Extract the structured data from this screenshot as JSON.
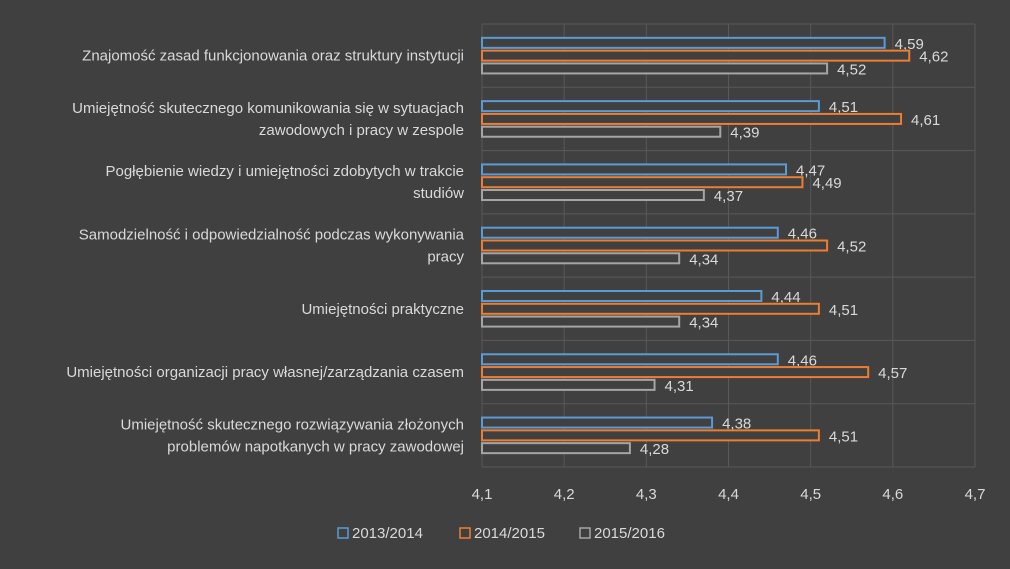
{
  "chart_data": {
    "type": "bar",
    "orientation": "horizontal",
    "categories": [
      [
        "Znajomość zasad funkcjonowania oraz struktury instytucji"
      ],
      [
        "Umiejętność skutecznego komunikowania się w sytuacjach",
        "zawodowych i pracy w zespole"
      ],
      [
        "Pogłębienie wiedzy i umiejętności zdobytych w trakcie",
        "studiów"
      ],
      [
        "Samodzielność i odpowiedzialność podczas wykonywania",
        "pracy"
      ],
      [
        "Umiejętności praktyczne"
      ],
      [
        "Umiejętności organizacji pracy własnej/zarządzania czasem"
      ],
      [
        "Umiejętność skutecznego rozwiązywania złożonych",
        "problemów napotkanych w pracy zawodowej"
      ]
    ],
    "series": [
      {
        "name": "2013/2014",
        "color": "#5b9bd5",
        "values": [
          4.59,
          4.51,
          4.47,
          4.46,
          4.44,
          4.46,
          4.38
        ],
        "labels": [
          "4,59",
          "4,51",
          "4,47",
          "4,46",
          "4,44",
          "4,46",
          "4,38"
        ]
      },
      {
        "name": "2014/2015",
        "color": "#ed7d31",
        "values": [
          4.62,
          4.61,
          4.49,
          4.52,
          4.51,
          4.57,
          4.51
        ],
        "labels": [
          "4,62",
          "4,61",
          "4,49",
          "4,52",
          "4,51",
          "4,57",
          "4,51"
        ]
      },
      {
        "name": "2015/2016",
        "color": "#a5a5a5",
        "values": [
          4.52,
          4.39,
          4.37,
          4.34,
          4.34,
          4.31,
          4.28
        ],
        "labels": [
          "4,52",
          "4,39",
          "4,37",
          "4,34",
          "4,34",
          "4,31",
          "4,28"
        ]
      }
    ],
    "xlim": [
      4.1,
      4.7
    ],
    "xticks": [
      4.1,
      4.2,
      4.3,
      4.4,
      4.5,
      4.6,
      4.7
    ],
    "xtick_labels": [
      "4,1",
      "4,2",
      "4,3",
      "4,4",
      "4,5",
      "4,6",
      "4,7"
    ],
    "grid": true,
    "legend_position": "bottom"
  }
}
